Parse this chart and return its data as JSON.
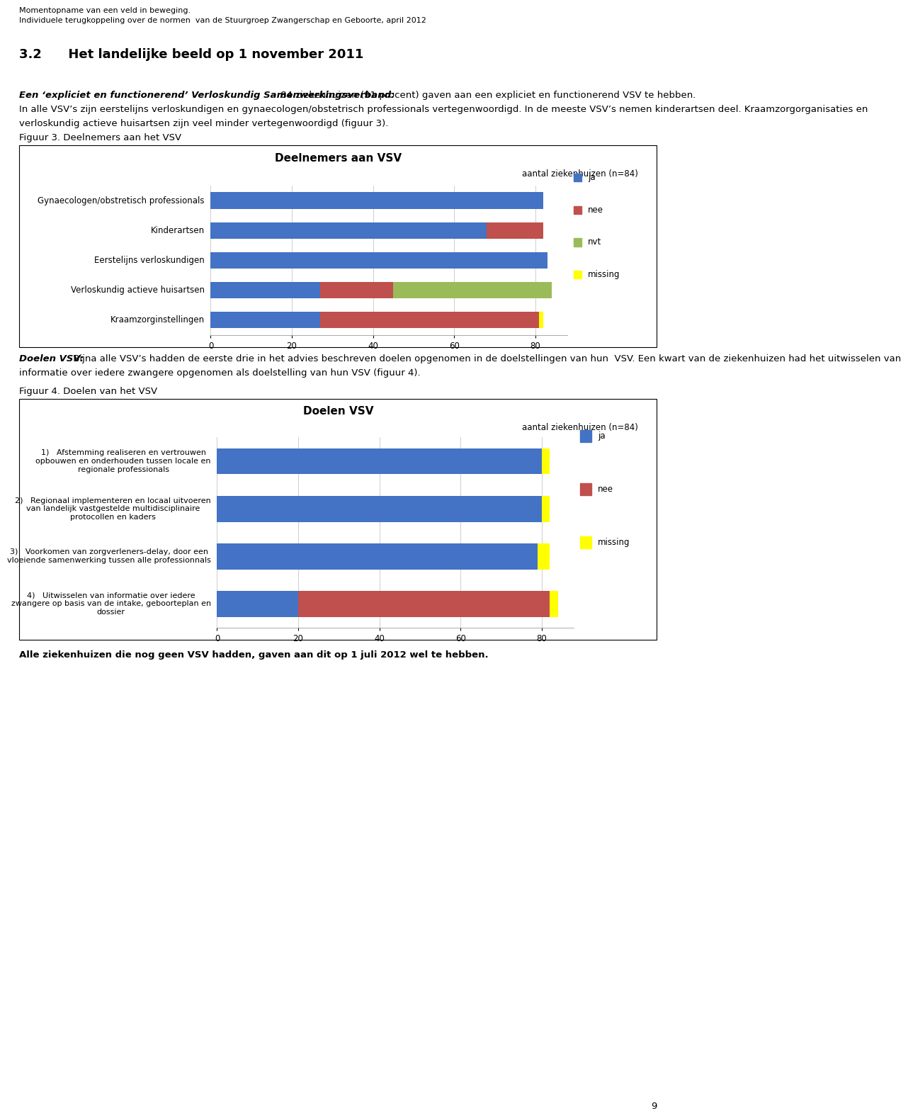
{
  "page_header_line1": "Momentopname van een veld in beweging.",
  "page_header_line2": "Individuele terugkoppeling over de normen  van de Stuurgroep Zwangerschap en Geboorte, april 2012",
  "section_title": "3.2      Het landelijke beeld op 1 november 2011",
  "para1_bold": "Een ‘expliciet en functionerend’ Verloskundig Samenwerkingsverband:",
  "para1_rest": " 84 ziekenhuizen (91 procent) gaven aan een expliciet en functionerend VSV te hebben.",
  "para1_line2": "In alle VSV’s zijn eerstelijns verloskundigen en gynaecologen/obstetrisch professionals vertegenwoordigd. In de meeste VSV’s nemen kinderartsen deel. Kraamzorgorganisaties en",
  "para1_line3": "verloskundig actieve huisartsen zijn veel minder vertegenwoordigd (figuur 3).",
  "fig3_label": "Figuur 3. Deelnemers aan het VSV",
  "fig3_title": "Deelnemers aan VSV",
  "fig3_subtitle": "aantal ziekenhuizen (n=84)",
  "fig3_xlabel_ticks": [
    0,
    20,
    40,
    60,
    80
  ],
  "fig3_xlim": [
    0,
    88
  ],
  "fig3_categories": [
    "Gynaecologen/obstretisch professionals",
    "Kinderartsen",
    "Eerstelijns verloskundigen",
    "Verloskundig actieve huisartsen",
    "Kraamzorginstellingen"
  ],
  "fig3_data": {
    "ja": [
      82,
      68,
      83,
      27,
      27
    ],
    "nee": [
      0,
      14,
      0,
      18,
      54
    ],
    "nvt": [
      0,
      0,
      0,
      39,
      0
    ],
    "missing": [
      0,
      0,
      0,
      0,
      1
    ]
  },
  "para2_bold": "Doelen VSV:",
  "para2_line1": " Bijna alle VSV’s hadden de eerste drie in het advies beschreven doelen opgenomen in de doelstellingen van hun  VSV. Een kwart van de ziekenhuizen had het uitwisselen van",
  "para2_line2": "informatie over iedere zwangere opgenomen als doelstelling van hun VSV (figuur 4).",
  "fig4_label": "Figuur 4. Doelen van het VSV",
  "fig4_title": "Doelen VSV",
  "fig4_subtitle": "aantal ziekenhuizen (n=84)",
  "fig4_xlabel_ticks": [
    0,
    20,
    40,
    60,
    80
  ],
  "fig4_xlim": [
    0,
    88
  ],
  "fig4_categories": [
    "1)   Afstemming realiseren en vertrouwen\nopbouwen en onderhouden tussen locale en\nregionale professionals",
    "2)   Regionaal implementeren en locaal uitvoeren\nvan landelijk vastgestelde multidisciplinaire\nprotocollen en kaders",
    "3)   Voorkomen van zorgverleners-delay, door een\nvloeiende samenwerking tussen alle professionnals",
    "4)   Uitwisselen van informatie over iedere\nzwangere op basis van de intake, geboorteplan en\ndossier"
  ],
  "fig4_data": {
    "ja": [
      80,
      80,
      79,
      20
    ],
    "nee": [
      0,
      0,
      0,
      62
    ],
    "missing": [
      2,
      2,
      3,
      2
    ]
  },
  "footer_text": "Alle ziekenhuizen die nog geen VSV hadden, gaven aan dit op 1 juli 2012 wel te hebben.",
  "page_number": "9",
  "colors": {
    "ja": "#4472C4",
    "nee": "#C0504D",
    "nvt": "#9BBB59",
    "missing": "#FFFF00",
    "background": "#FFFFFF"
  },
  "bar_height": 0.55
}
